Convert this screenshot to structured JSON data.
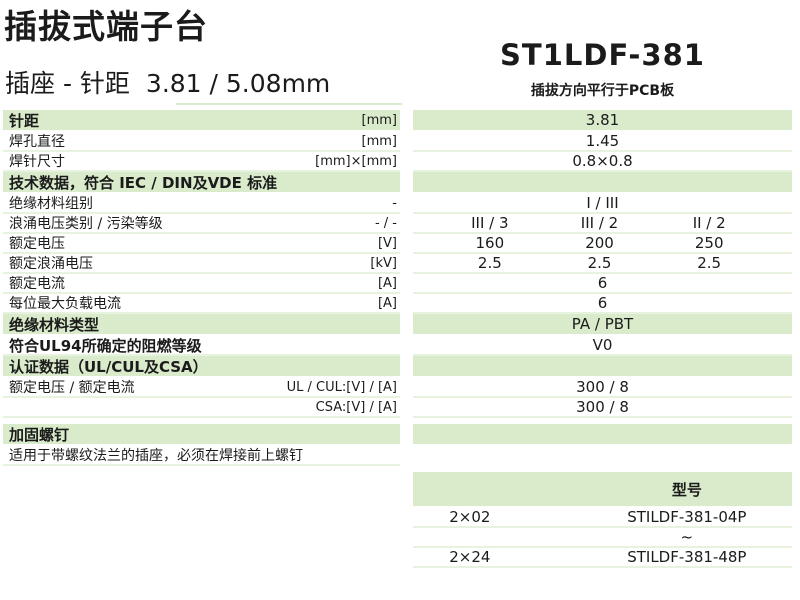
{
  "header": {
    "title": "插拔式端子台",
    "subtitle_label": "插座 - 针距",
    "subtitle_value": "3.81 / 5.08mm",
    "model": "ST1LDF-381",
    "model_note": "插拔方向平行于PCB板"
  },
  "colors": {
    "accent_green": "#d9ebcb",
    "divider_green": "#e7f3df",
    "text": "#1b1b1b"
  },
  "spec_rows": [
    {
      "kind": "green",
      "bold": true,
      "label": "针距",
      "unit": "[mm]",
      "value": "3.81"
    },
    {
      "kind": "white",
      "bold": false,
      "label": "焊孔直径",
      "unit": "[mm]",
      "value": "1.45"
    },
    {
      "kind": "white",
      "bold": false,
      "label": "焊针尺寸",
      "unit": "[mm]×[mm]",
      "value": "0.8×0.8"
    },
    {
      "kind": "green",
      "bold": true,
      "label": "技术数据，符合 IEC / DIN及VDE 标准",
      "unit": "",
      "value": ""
    },
    {
      "kind": "white",
      "bold": false,
      "label": "绝缘材料组别",
      "unit": "-",
      "value": "I / III"
    },
    {
      "kind": "white",
      "bold": false,
      "label": "浪涌电压类别 / 污染等级",
      "unit": "- / -",
      "cols": [
        "III / 3",
        "III / 2",
        "II / 2"
      ]
    },
    {
      "kind": "white",
      "bold": false,
      "label": "额定电压",
      "unit": "[V]",
      "cols": [
        "160",
        "200",
        "250"
      ]
    },
    {
      "kind": "white",
      "bold": false,
      "label": "额定浪涌电压",
      "unit": "[kV]",
      "cols": [
        "2.5",
        "2.5",
        "2.5"
      ]
    },
    {
      "kind": "white",
      "bold": false,
      "label": "额定电流",
      "unit": "[A]",
      "value": "6"
    },
    {
      "kind": "white",
      "bold": false,
      "label": "每位最大负载电流",
      "unit": "[A]",
      "value": "6"
    },
    {
      "kind": "green",
      "bold": true,
      "label": "绝缘材料类型",
      "unit": "",
      "value": "PA / PBT"
    },
    {
      "kind": "white",
      "bold": true,
      "label": "符合UL94所确定的阻燃等级",
      "unit": "",
      "value": "V0"
    },
    {
      "kind": "green",
      "bold": true,
      "label": "认证数据（UL/CUL及CSA）",
      "unit": "",
      "value": ""
    },
    {
      "kind": "white",
      "bold": false,
      "label": "额定电压 / 额定电流",
      "unit": "UL / CUL:[V] / [A]",
      "value": "300 / 8"
    },
    {
      "kind": "white",
      "bold": false,
      "label": "",
      "unit": "CSA:[V] / [A]",
      "value": "300 / 8"
    },
    {
      "kind": "spacer"
    },
    {
      "kind": "green",
      "bold": true,
      "label": "加固螺钉",
      "unit": "",
      "value": ""
    },
    {
      "kind": "note",
      "bold": false,
      "label": "适用于带螺纹法兰的插座，必须在焊接前上螺钉",
      "unit": "",
      "value": ""
    }
  ],
  "model_table": {
    "column_header": "型号",
    "rows": [
      {
        "positions": "2×02",
        "model": "STILDF-381-04P"
      },
      {
        "positions": "",
        "model": "~"
      },
      {
        "positions": "2×24",
        "model": "STILDF-381-48P"
      }
    ]
  }
}
